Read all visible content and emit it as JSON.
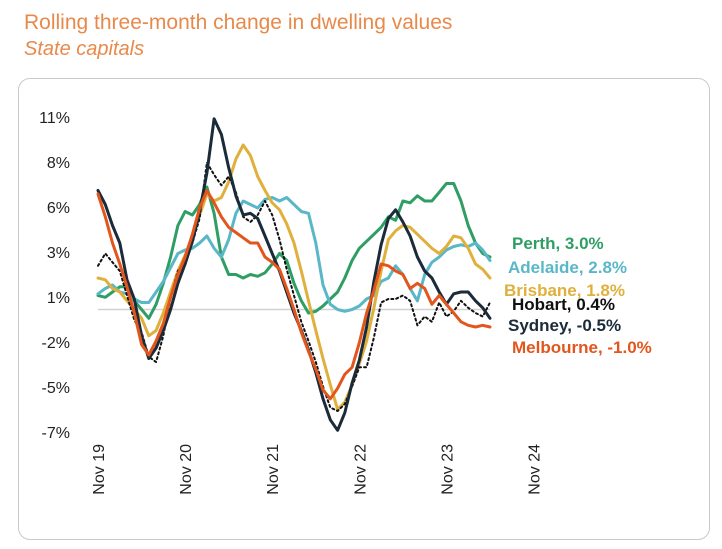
{
  "header": {
    "title": "Rolling three-month change in dwelling values",
    "subtitle": "State capitals"
  },
  "chart_data": {
    "type": "line",
    "title": "Rolling three-month change in dwelling values",
    "subtitle": "State capitals",
    "xlabel": "",
    "ylabel": "",
    "ylim": [
      -7.5,
      11.5
    ],
    "y_ticks": [
      11,
      8,
      6,
      3,
      1,
      -2,
      -5,
      -7
    ],
    "y_tick_labels": [
      "11%",
      "8%",
      "6%",
      "3%",
      "1%",
      "-2%",
      "-5%",
      "-7%"
    ],
    "x_ticks": [
      0,
      12,
      24,
      36,
      48,
      60
    ],
    "x_tick_labels": [
      "Nov 19",
      "Nov 20",
      "Nov 21",
      "Nov 22",
      "Nov 23",
      "Nov 24"
    ],
    "reference_line": 0,
    "series": [
      {
        "name": "Perth",
        "color": "#2e9e64",
        "dash": false,
        "end_label": "Perth, 3.0%",
        "values": [
          0.8,
          0.7,
          1.0,
          1.3,
          1.3,
          0.5,
          0.0,
          -0.5,
          0.3,
          1.5,
          3.0,
          4.8,
          5.6,
          5.4,
          6.0,
          7.0,
          5.5,
          3.0,
          2.0,
          2.0,
          1.8,
          2.0,
          1.9,
          2.1,
          2.6,
          3.2,
          2.8,
          1.5,
          0.5,
          -0.2,
          -0.1,
          0.2,
          0.6,
          1.0,
          1.8,
          2.8,
          3.5,
          3.9,
          4.3,
          4.7,
          5.3,
          5.1,
          6.2,
          6.1,
          6.5,
          6.2,
          6.2,
          6.7,
          7.2,
          7.2,
          6.2,
          4.8,
          3.8,
          3.2,
          3.0
        ]
      },
      {
        "name": "Adelaide",
        "color": "#5ab7c8",
        "dash": false,
        "end_label": "Adelaide, 2.8%",
        "values": [
          0.9,
          1.2,
          1.4,
          1.0,
          0.9,
          0.6,
          0.4,
          0.4,
          1.0,
          1.6,
          2.4,
          3.2,
          3.4,
          3.5,
          3.8,
          4.2,
          3.5,
          3.0,
          4.0,
          5.5,
          6.2,
          6.0,
          5.8,
          6.3,
          6.4,
          6.2,
          6.4,
          6.0,
          5.6,
          5.5,
          3.8,
          1.4,
          0.3,
          0.0,
          -0.1,
          0.0,
          0.2,
          0.6,
          0.8,
          1.6,
          1.8,
          2.5,
          2.0,
          1.2,
          0.5,
          2.0,
          2.7,
          3.0,
          3.4,
          3.6,
          3.7,
          3.6,
          3.8,
          3.4,
          2.8
        ]
      },
      {
        "name": "Brisbane",
        "color": "#e0b03c",
        "dash": false,
        "end_label": "Brisbane, 1.8%",
        "values": [
          1.8,
          1.7,
          1.2,
          1.0,
          0.5,
          0.0,
          -0.5,
          -1.5,
          -1.2,
          -0.2,
          1.0,
          2.2,
          3.1,
          4.2,
          5.4,
          6.6,
          6.2,
          6.4,
          7.3,
          8.6,
          9.4,
          8.8,
          7.6,
          6.8,
          6.1,
          5.7,
          4.9,
          3.8,
          2.2,
          0.5,
          -1.2,
          -2.8,
          -4.3,
          -5.7,
          -5.3,
          -4.3,
          -3.1,
          -1.8,
          0.1,
          2.2,
          4.0,
          4.5,
          4.8,
          4.7,
          4.3,
          3.9,
          3.5,
          3.2,
          3.6,
          4.2,
          4.1,
          3.5,
          2.6,
          2.3,
          1.8
        ]
      },
      {
        "name": "Hobart",
        "color": "#111111",
        "dash": true,
        "end_label": "Hobart, 0.4%",
        "values": [
          2.5,
          3.2,
          2.7,
          2.2,
          0.8,
          -0.6,
          -1.3,
          -2.7,
          -3.0,
          -1.5,
          0.7,
          2.2,
          2.7,
          3.8,
          5.2,
          8.4,
          7.7,
          7.1,
          7.6,
          6.7,
          5.3,
          5.0,
          5.4,
          6.2,
          5.4,
          4.0,
          2.3,
          0.8,
          -0.7,
          -1.8,
          -3.0,
          -4.4,
          -5.6,
          -5.8,
          -5.4,
          -4.4,
          -3.3,
          -3.3,
          -1.6,
          0.4,
          0.6,
          0.6,
          0.8,
          0.5,
          -0.9,
          -0.4,
          -0.7,
          0.4,
          -0.4,
          -0.1,
          0.5,
          0.1,
          -0.2,
          -0.4,
          0.4
        ]
      },
      {
        "name": "Sydney",
        "color": "#1b2b3a",
        "dash": false,
        "end_label": "Sydney, -0.5%",
        "values": [
          6.8,
          6.0,
          4.8,
          3.8,
          1.7,
          0.6,
          -1.5,
          -2.8,
          -2.2,
          -1.2,
          0.0,
          1.5,
          2.6,
          3.9,
          5.6,
          7.8,
          10.9,
          10.0,
          8.1,
          6.5,
          5.4,
          5.5,
          5.2,
          4.2,
          3.2,
          2.2,
          1.0,
          -0.2,
          -1.2,
          -2.3,
          -3.6,
          -5.1,
          -6.3,
          -6.9,
          -5.9,
          -4.2,
          -2.9,
          -1.0,
          1.6,
          3.7,
          5.2,
          5.7,
          5.0,
          4.2,
          3.0,
          2.2,
          1.8,
          1.0,
          0.3,
          0.9,
          1.0,
          1.0,
          0.5,
          0.1,
          -0.5
        ]
      },
      {
        "name": "Melbourne",
        "color": "#e2561e",
        "dash": false,
        "end_label": "Melbourne, -1.0%",
        "values": [
          6.6,
          5.3,
          3.8,
          2.6,
          1.3,
          -0.2,
          -2.0,
          -2.6,
          -1.8,
          -0.8,
          0.7,
          2.0,
          3.0,
          4.3,
          5.8,
          6.8,
          6.1,
          5.3,
          4.7,
          4.4,
          4.1,
          3.8,
          3.8,
          3.0,
          2.7,
          2.3,
          1.2,
          0.0,
          -1.3,
          -2.4,
          -3.4,
          -4.6,
          -5.1,
          -4.5,
          -3.7,
          -3.3,
          -1.9,
          -0.2,
          1.1,
          2.6,
          2.5,
          2.2,
          2.0,
          1.2,
          1.5,
          1.2,
          0.3,
          0.8,
          0.3,
          -0.2,
          -0.7,
          -0.9,
          -1.0,
          -0.9,
          -1.0
        ]
      }
    ]
  }
}
